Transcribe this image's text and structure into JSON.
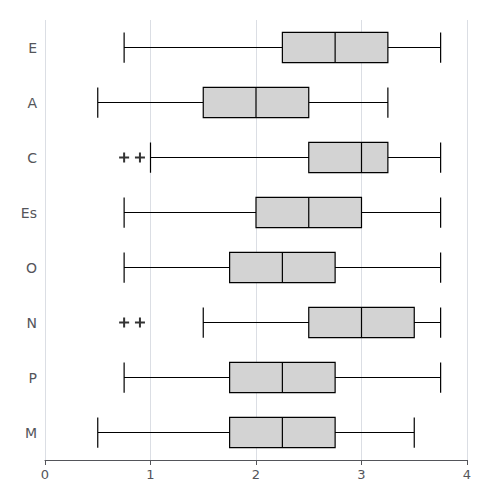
{
  "chart_data": {
    "type": "boxplot",
    "orientation": "horizontal",
    "categories": [
      "E",
      "A",
      "C",
      "Es",
      "O",
      "N",
      "P",
      "M"
    ],
    "values": [
      [
        0.75,
        2.25,
        2.75,
        3.25,
        3.75
      ],
      [
        0.5,
        1.5,
        2.0,
        2.5,
        3.25
      ],
      [
        1.0,
        2.5,
        3.0,
        3.25,
        3.75
      ],
      [
        0.75,
        2.0,
        2.5,
        3.0,
        3.75
      ],
      [
        0.75,
        1.75,
        2.25,
        2.75,
        3.75
      ],
      [
        1.5,
        2.5,
        3.0,
        3.5,
        3.75
      ],
      [
        0.75,
        1.75,
        2.25,
        2.75,
        3.75
      ],
      [
        0.5,
        1.75,
        2.25,
        2.75,
        3.5
      ]
    ],
    "outliers": [
      [],
      [],
      [
        0.75,
        0.9
      ],
      [],
      [],
      [
        0.75,
        0.9
      ],
      [],
      []
    ],
    "marker": "+",
    "color": "#d3d3d3",
    "xlim": [
      0,
      4
    ],
    "xticks": [
      0,
      1,
      2,
      3,
      4
    ],
    "grid": true
  }
}
